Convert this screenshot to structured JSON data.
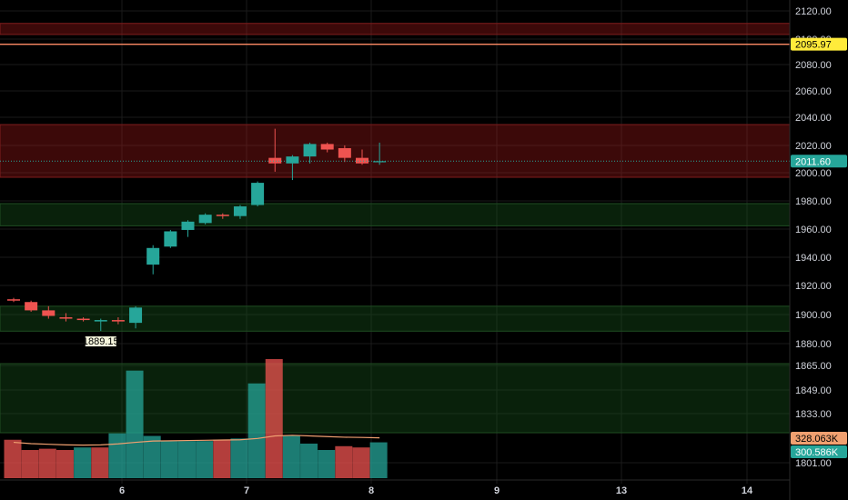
{
  "chart_data": {
    "type": "candlestick",
    "title": "",
    "xlabel": "",
    "ylabel": "",
    "colors": {
      "up": "#26a69a",
      "down": "#ef5350",
      "up_volume": "#26a69a",
      "down_volume": "#ef5350",
      "support_zone": "#1b5e20",
      "resistance_zone": "#b71c1c",
      "ma_line": "#f0a070",
      "level_line": "#ff8a65",
      "background": "#000000"
    },
    "price_axis": {
      "ticks": [
        "2120.00",
        "2100.00",
        "2080.00",
        "2060.00",
        "2040.00",
        "2020.00",
        "2000.00",
        "1980.00",
        "1960.00",
        "1940.00",
        "1920.00",
        "1900.00",
        "1880.00"
      ],
      "range": [
        1870,
        2125
      ]
    },
    "volume_axis": {
      "ticks": [
        "1865.00",
        "1849.00",
        "1833.00",
        "1801.00"
      ]
    },
    "time_axis": {
      "labels": [
        "6",
        "7",
        "8",
        "9",
        "13",
        "14"
      ]
    },
    "candles": [
      {
        "open": 1912,
        "high": 1913,
        "low": 1910,
        "close": 1911
      },
      {
        "open": 1910,
        "high": 1911,
        "low": 1903,
        "close": 1904
      },
      {
        "open": 1904,
        "high": 1907,
        "low": 1898,
        "close": 1900
      },
      {
        "open": 1899,
        "high": 1902,
        "low": 1896,
        "close": 1898
      },
      {
        "open": 1898,
        "high": 1899,
        "low": 1896,
        "close": 1897
      },
      {
        "open": 1896,
        "high": 1898,
        "low": 1889.15,
        "close": 1897
      },
      {
        "open": 1897,
        "high": 1899,
        "low": 1894,
        "close": 1896
      },
      {
        "open": 1895,
        "high": 1907,
        "low": 1891,
        "close": 1906
      },
      {
        "open": 1937,
        "high": 1951,
        "low": 1930,
        "close": 1949
      },
      {
        "open": 1950,
        "high": 1962,
        "low": 1949,
        "close": 1961
      },
      {
        "open": 1962,
        "high": 1969,
        "low": 1957,
        "close": 1968
      },
      {
        "open": 1967,
        "high": 1974,
        "low": 1966,
        "close": 1973
      },
      {
        "open": 1973,
        "high": 1974,
        "low": 1970,
        "close": 1972
      },
      {
        "open": 1972,
        "high": 1980,
        "low": 1970,
        "close": 1979
      },
      {
        "open": 1980,
        "high": 1997,
        "low": 1979,
        "close": 1996
      },
      {
        "open": 2014,
        "high": 2035,
        "low": 2004,
        "close": 2010
      },
      {
        "open": 2010,
        "high": 2016,
        "low": 1998,
        "close": 2015
      },
      {
        "open": 2015,
        "high": 2025,
        "low": 2010,
        "close": 2024
      },
      {
        "open": 2024,
        "high": 2025,
        "low": 2018,
        "close": 2020
      },
      {
        "open": 2021,
        "high": 2023,
        "low": 2011,
        "close": 2014
      },
      {
        "open": 2014,
        "high": 2020,
        "low": 2009,
        "close": 2010
      },
      {
        "open": 2011,
        "high": 2025,
        "low": 2009,
        "close": 2011.6
      }
    ],
    "volume": [
      {
        "value": 0.3,
        "dir": "down"
      },
      {
        "value": 0.22,
        "dir": "down"
      },
      {
        "value": 0.23,
        "dir": "down"
      },
      {
        "value": 0.22,
        "dir": "down"
      },
      {
        "value": 0.24,
        "dir": "up"
      },
      {
        "value": 0.24,
        "dir": "down"
      },
      {
        "value": 0.35,
        "dir": "up"
      },
      {
        "value": 0.84,
        "dir": "up"
      },
      {
        "value": 0.33,
        "dir": "up"
      },
      {
        "value": 0.29,
        "dir": "up"
      },
      {
        "value": 0.29,
        "dir": "up"
      },
      {
        "value": 0.29,
        "dir": "up"
      },
      {
        "value": 0.3,
        "dir": "down"
      },
      {
        "value": 0.31,
        "dir": "up"
      },
      {
        "value": 0.74,
        "dir": "up"
      },
      {
        "value": 0.93,
        "dir": "down"
      },
      {
        "value": 0.33,
        "dir": "up"
      },
      {
        "value": 0.27,
        "dir": "up"
      },
      {
        "value": 0.22,
        "dir": "up"
      },
      {
        "value": 0.25,
        "dir": "down"
      },
      {
        "value": 0.24,
        "dir": "down"
      },
      {
        "value": 0.28,
        "dir": "up"
      }
    ],
    "volume_ma": [
      0.28,
      0.27,
      0.265,
      0.26,
      0.258,
      0.26,
      0.268,
      0.28,
      0.29,
      0.292,
      0.294,
      0.296,
      0.298,
      0.3,
      0.31,
      0.33,
      0.335,
      0.33,
      0.325,
      0.32,
      0.318,
      0.315
    ],
    "zones": [
      {
        "kind": "resistance",
        "from": 2103,
        "to": 2111
      },
      {
        "kind": "resistance",
        "from": 2000,
        "to": 2038
      },
      {
        "kind": "support",
        "from": 1965,
        "to": 1981
      },
      {
        "kind": "support",
        "from": 1889,
        "to": 1907
      }
    ],
    "volume_zones": [
      {
        "kind": "support",
        "from_frac": 0.28,
        "to_frac": 0.875
      }
    ],
    "level_line": {
      "value": 2095.97,
      "label": "2095.97"
    },
    "last_price": {
      "value": 2011.6,
      "label": "2011.60"
    },
    "low_marker": {
      "value": 1889.15,
      "label": "1889.15",
      "candle": 5
    },
    "volume_tags": [
      {
        "label": "328.063K",
        "color": "#f0a070"
      },
      {
        "label": "300.586K",
        "color": "#26a69a"
      }
    ]
  }
}
